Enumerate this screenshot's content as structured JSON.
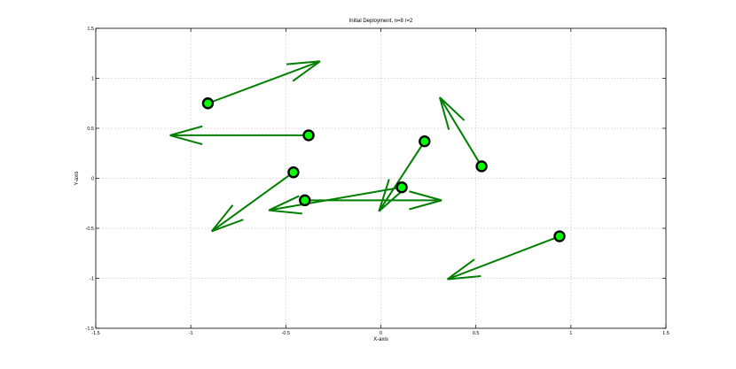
{
  "chart_data": {
    "type": "quiver",
    "title": "Initial Deployment, n=8 r=2",
    "xlabel": "X-axis",
    "ylabel": "Y-axis",
    "xlim": [
      -1.5,
      1.5
    ],
    "ylim": [
      -1.5,
      1.5
    ],
    "xticks": [
      -1.5,
      -1,
      -0.5,
      0,
      0.5,
      1,
      1.5
    ],
    "yticks": [
      -1.5,
      -1,
      -0.5,
      0,
      0.5,
      1,
      1.5
    ],
    "xtick_labels": [
      "-1.5",
      "-1",
      "-0.5",
      "0",
      "0.5",
      "1",
      "1.5"
    ],
    "ytick_labels": [
      "-1.5",
      "-1",
      "-0.5",
      "0",
      "0.5",
      "1",
      "1.5"
    ],
    "grid": true,
    "points": [
      {
        "x": -0.91,
        "y": 0.75,
        "dx": 0.59,
        "dy": 0.42
      },
      {
        "x": -0.38,
        "y": 0.43,
        "dx": -0.73,
        "dy": 0.0
      },
      {
        "x": -0.46,
        "y": 0.06,
        "dx": -0.43,
        "dy": -0.59
      },
      {
        "x": -0.4,
        "y": -0.22,
        "dx": 0.72,
        "dy": 0.0
      },
      {
        "x": 0.11,
        "y": -0.09,
        "dx": -0.7,
        "dy": -0.23
      },
      {
        "x": 0.23,
        "y": 0.37,
        "dx": -0.24,
        "dy": -0.7
      },
      {
        "x": 0.53,
        "y": 0.12,
        "dx": -0.22,
        "dy": 0.69
      },
      {
        "x": 0.94,
        "y": -0.58,
        "dx": -0.59,
        "dy": -0.43
      }
    ],
    "colors": {
      "arrow": "#007f00",
      "marker_fill": "#00ff00",
      "marker_edge": "#000000",
      "grid": "#c8c8c8",
      "axes": "#000000"
    }
  }
}
